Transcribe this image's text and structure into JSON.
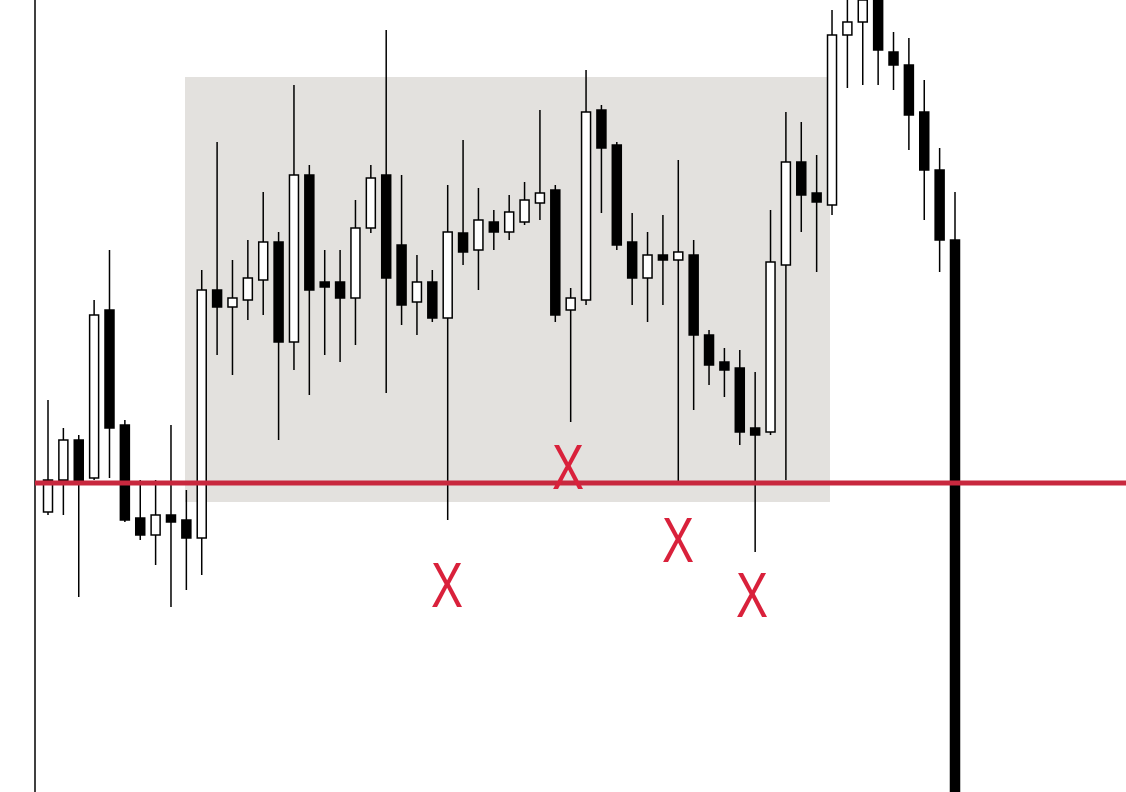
{
  "chart_data": {
    "type": "candlestick",
    "open": [
      280,
      312,
      352,
      314,
      482,
      367,
      274,
      257,
      277,
      272,
      254,
      502,
      485,
      492,
      512,
      550,
      450,
      617,
      510,
      510,
      494,
      564,
      617,
      547,
      490,
      510,
      474,
      559,
      542,
      570,
      560,
      570,
      589,
      602,
      482,
      492,
      682,
      647,
      550,
      514,
      537,
      532,
      537,
      457,
      430,
      424,
      364,
      360,
      527,
      630,
      599,
      587,
      757,
      770,
      792,
      740,
      727,
      680,
      622,
      552
    ],
    "high": [
      392,
      364,
      357,
      492,
      542,
      372,
      312,
      312,
      367,
      302,
      522,
      650,
      532,
      552,
      600,
      560,
      707,
      627,
      542,
      542,
      592,
      627,
      762,
      617,
      537,
      522,
      607,
      652,
      604,
      582,
      597,
      610,
      682,
      607,
      504,
      722,
      687,
      650,
      579,
      560,
      577,
      632,
      552,
      462,
      444,
      442,
      420,
      582,
      680,
      670,
      637,
      782,
      792,
      792,
      792,
      760,
      754,
      712,
      644,
      600
    ],
    "low": [
      277,
      277,
      195,
      312,
      314,
      270,
      252,
      227,
      185,
      202,
      217,
      437,
      417,
      472,
      477,
      352,
      422,
      397,
      437,
      430,
      447,
      559,
      399,
      467,
      457,
      470,
      272,
      527,
      502,
      542,
      552,
      567,
      572,
      470,
      370,
      487,
      579,
      542,
      487,
      470,
      487,
      310,
      382,
      407,
      395,
      347,
      240,
      357,
      312,
      560,
      520,
      577,
      704,
      707,
      707,
      702,
      642,
      572,
      520,
      0
    ],
    "close": [
      312,
      352,
      312,
      477,
      364,
      272,
      257,
      277,
      270,
      254,
      502,
      485,
      494,
      514,
      550,
      450,
      617,
      502,
      505,
      494,
      564,
      614,
      514,
      487,
      510,
      474,
      560,
      540,
      572,
      560,
      580,
      592,
      599,
      477,
      494,
      680,
      644,
      547,
      514,
      537,
      532,
      540,
      457,
      427,
      422,
      360,
      357,
      530,
      630,
      597,
      590,
      757,
      770,
      792,
      742,
      727,
      677,
      622,
      552,
      0
    ],
    "up_fill": "#ffffff",
    "down_fill": "#000000",
    "ylim": [
      0,
      792
    ],
    "level": {
      "value": 309,
      "color": "#c8283e"
    },
    "annotations": [
      "X",
      "X",
      "X",
      "X"
    ]
  }
}
